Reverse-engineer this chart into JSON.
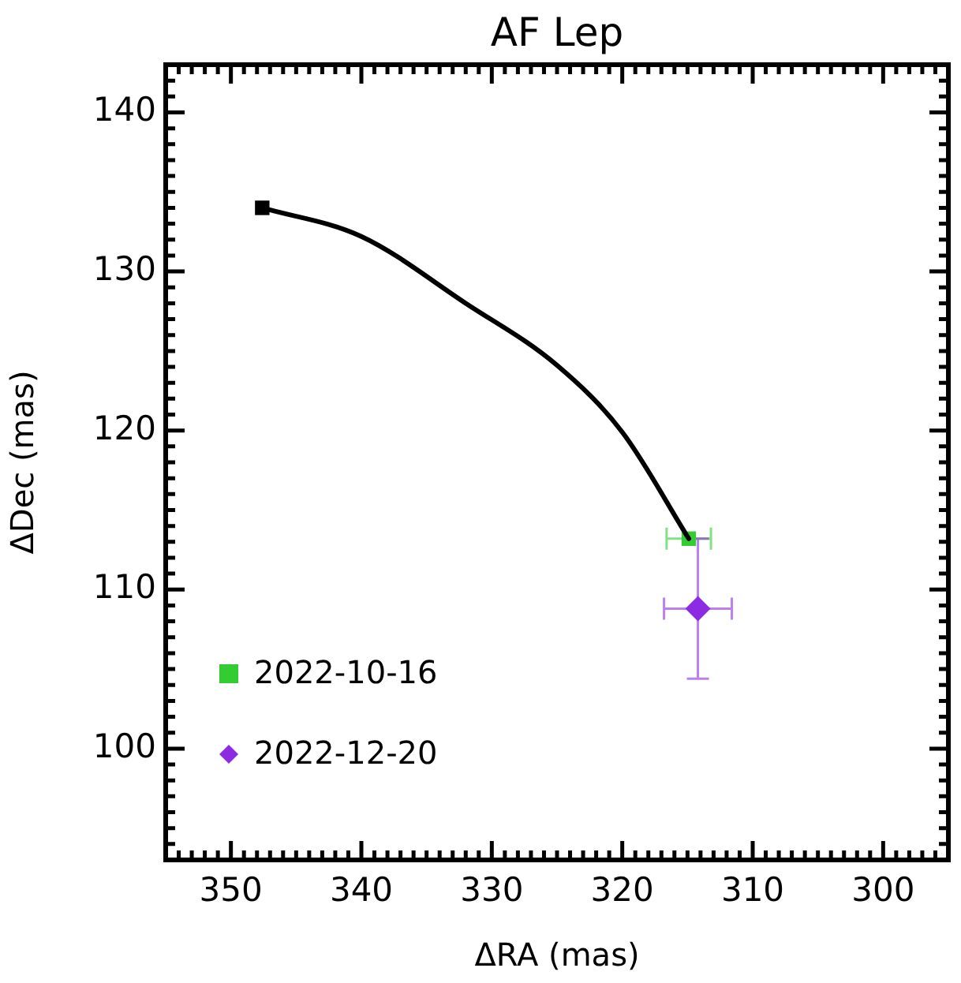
{
  "chart_data": {
    "type": "scatter",
    "title": "AF Lep",
    "xlabel": "ΔRA (mas)",
    "ylabel": "ΔDec (mas)",
    "xlim": [
      355,
      295
    ],
    "xticks": [
      350,
      340,
      330,
      320,
      310,
      300
    ],
    "ylim": [
      93,
      143
    ],
    "yticks": [
      100,
      110,
      120,
      130,
      140
    ],
    "grid": false,
    "legend": "bottom left",
    "series": [
      {
        "type": "line",
        "color": "#000000",
        "marker": "none",
        "line_style": "solid",
        "x": [
          347.6,
          340.0,
          332.0,
          325.0,
          320.0,
          314.9
        ],
        "values": [
          134.0,
          132.2,
          128.0,
          124.1,
          119.9,
          113.2
        ]
      },
      {
        "color": "#000000",
        "marker": "square",
        "x": [
          347.6
        ],
        "values": [
          134.0
        ]
      },
      {
        "name": "2022-10-16",
        "color": "#33cc33",
        "marker": "square",
        "x": [
          314.9
        ],
        "values": [
          113.2
        ],
        "xerrors": [
          1.7
        ]
      },
      {
        "name": "2022-12-20",
        "color": "#8c2be2",
        "marker": "diamond",
        "x": [
          314.2
        ],
        "values": [
          108.8
        ],
        "errors": [
          4.4
        ],
        "xerrors": [
          2.6
        ]
      }
    ]
  }
}
